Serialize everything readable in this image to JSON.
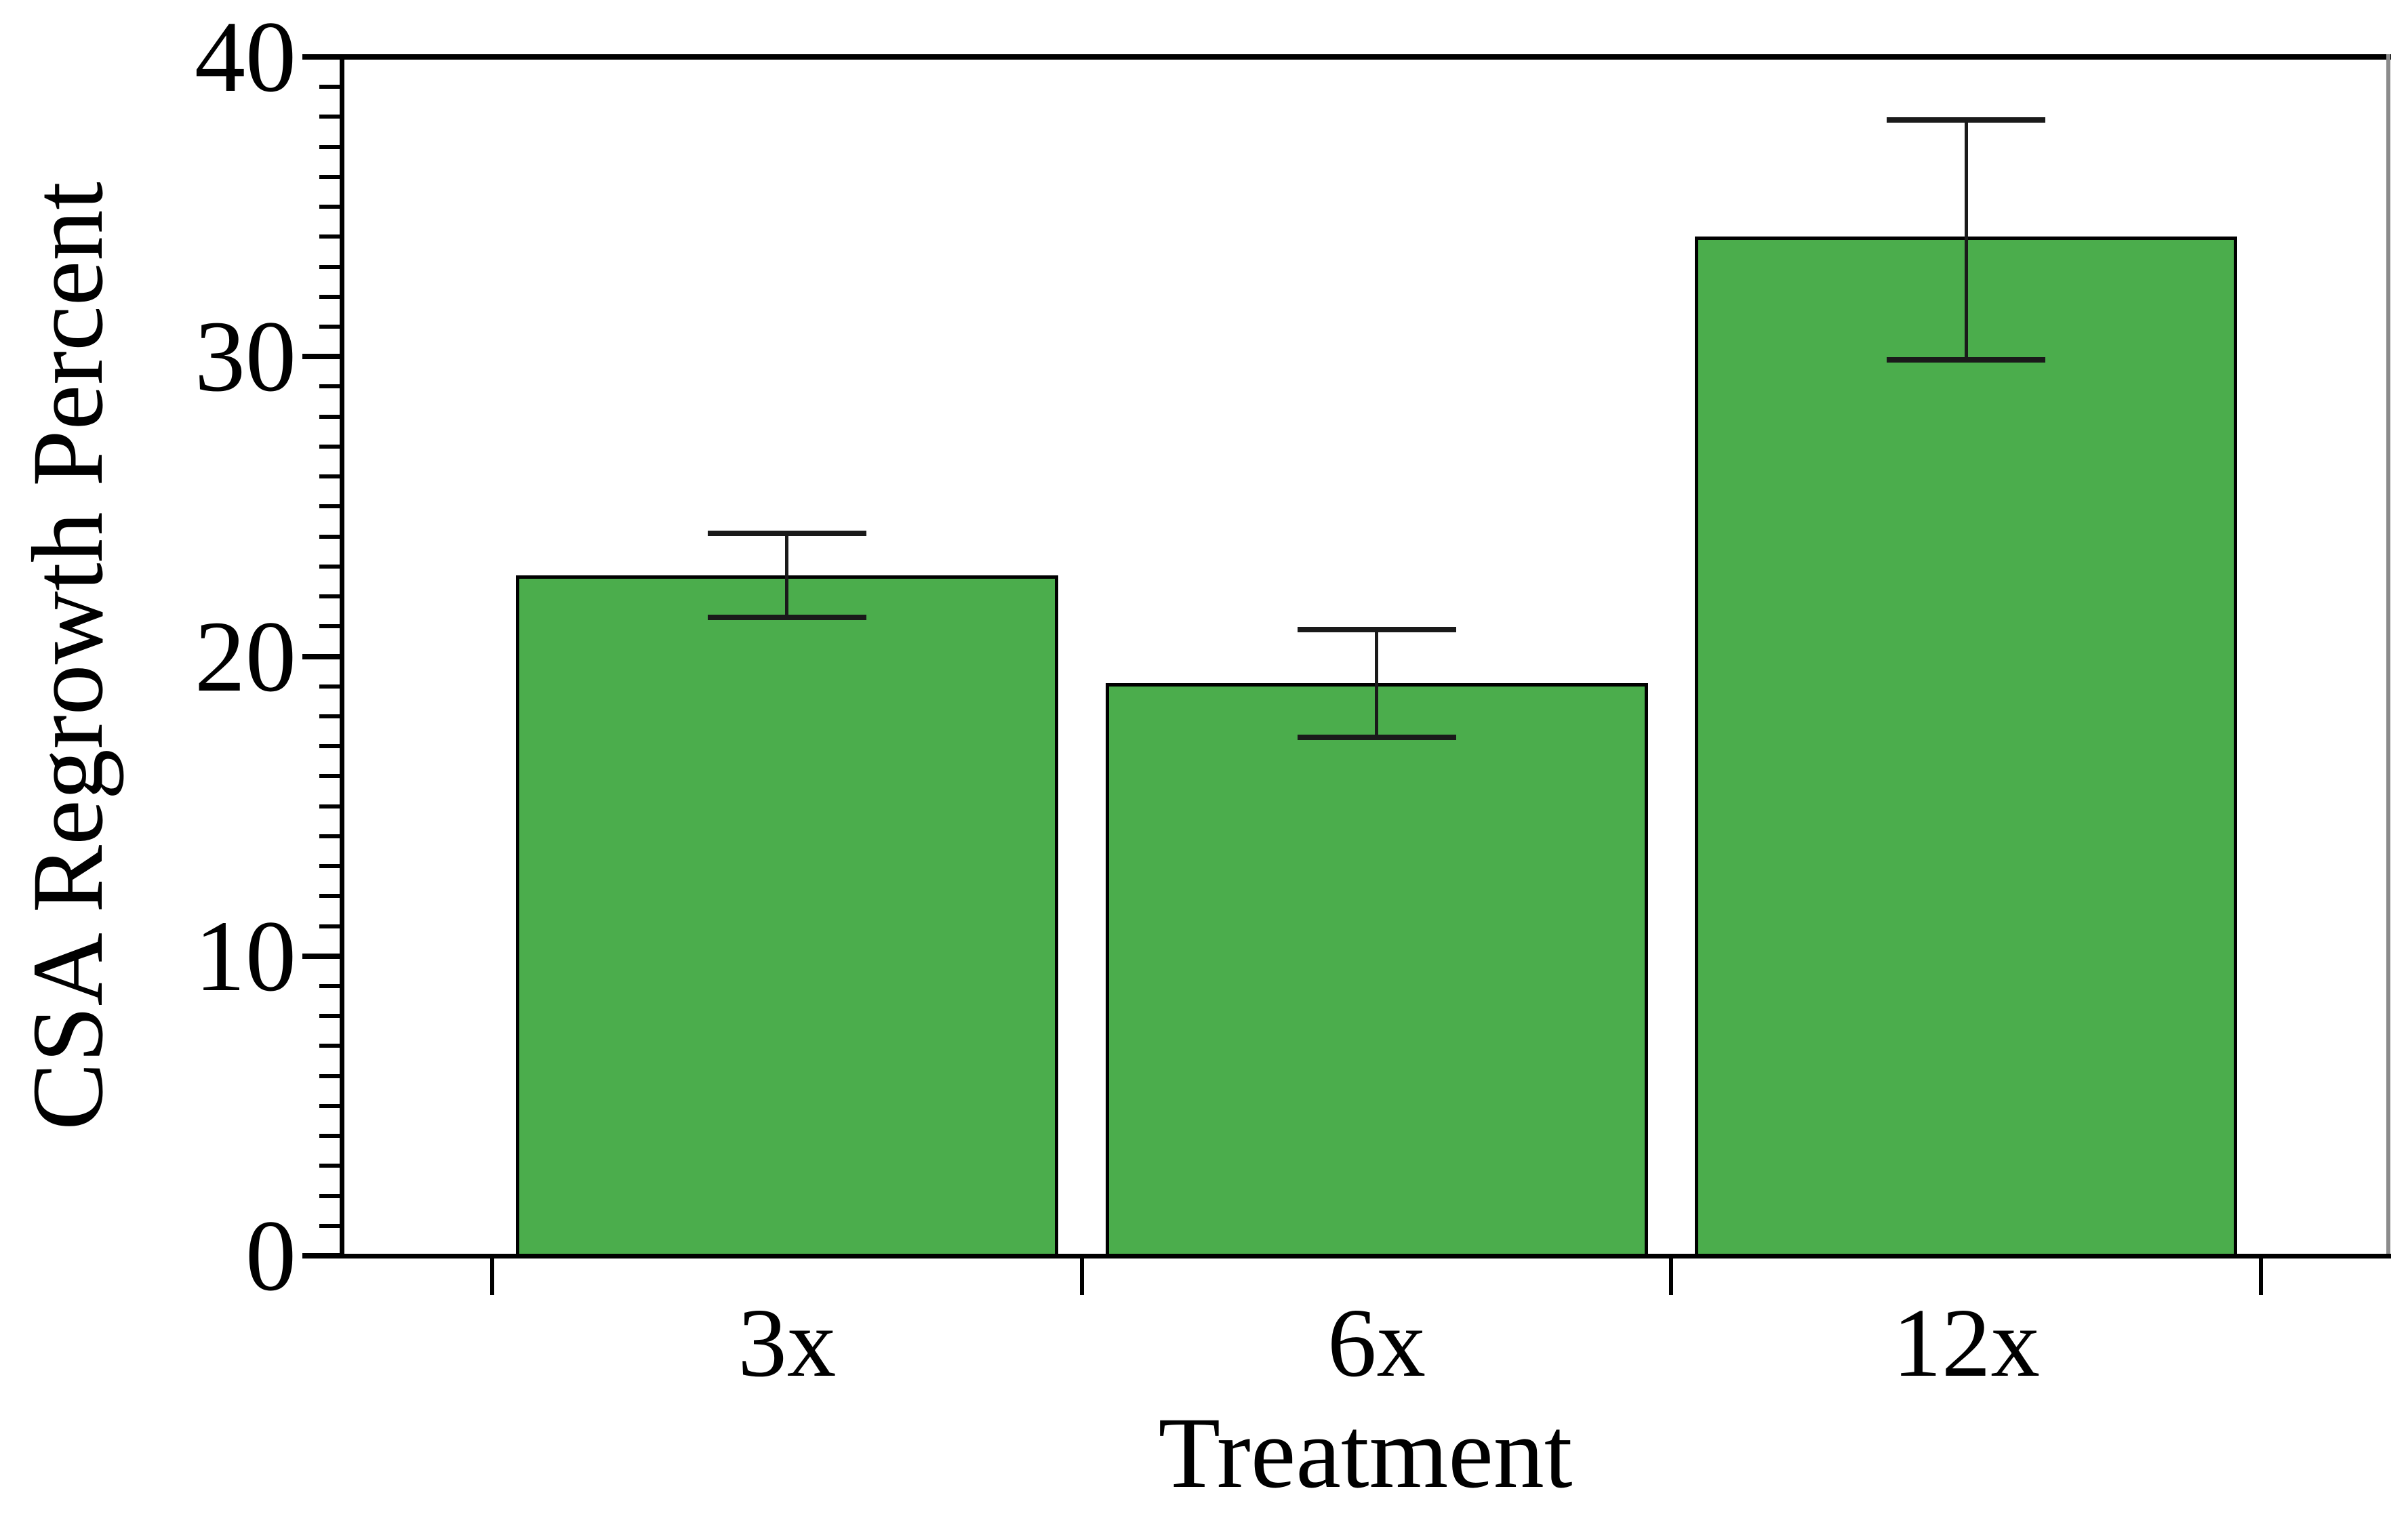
{
  "figure": {
    "background_color": "#ffffff",
    "axis_color": "#000000",
    "right_frame_color": "#8c8c8c"
  },
  "chart_data": {
    "type": "bar",
    "title": "",
    "xlabel": "Treatment",
    "ylabel": "CSA Regrowth Percent",
    "categories": [
      "3x",
      "6x",
      "12x"
    ],
    "values": [
      22.7,
      19.1,
      34.0
    ],
    "error_bars": {
      "low": [
        21.3,
        17.3,
        29.9
      ],
      "high": [
        24.1,
        20.9,
        37.9
      ]
    },
    "ylim": [
      0,
      40
    ],
    "y_major_tick_step": 10,
    "y_minor_tick_step": 1,
    "y_tick_labels": [
      "0",
      "10",
      "20",
      "30",
      "40"
    ],
    "grid": "off",
    "legend": "none",
    "frame": "full",
    "tick_direction": "out",
    "bar_fill_color": "#4bad4c",
    "bar_edge_color": "#000000",
    "error_bar_color": "#1a1a1a"
  }
}
